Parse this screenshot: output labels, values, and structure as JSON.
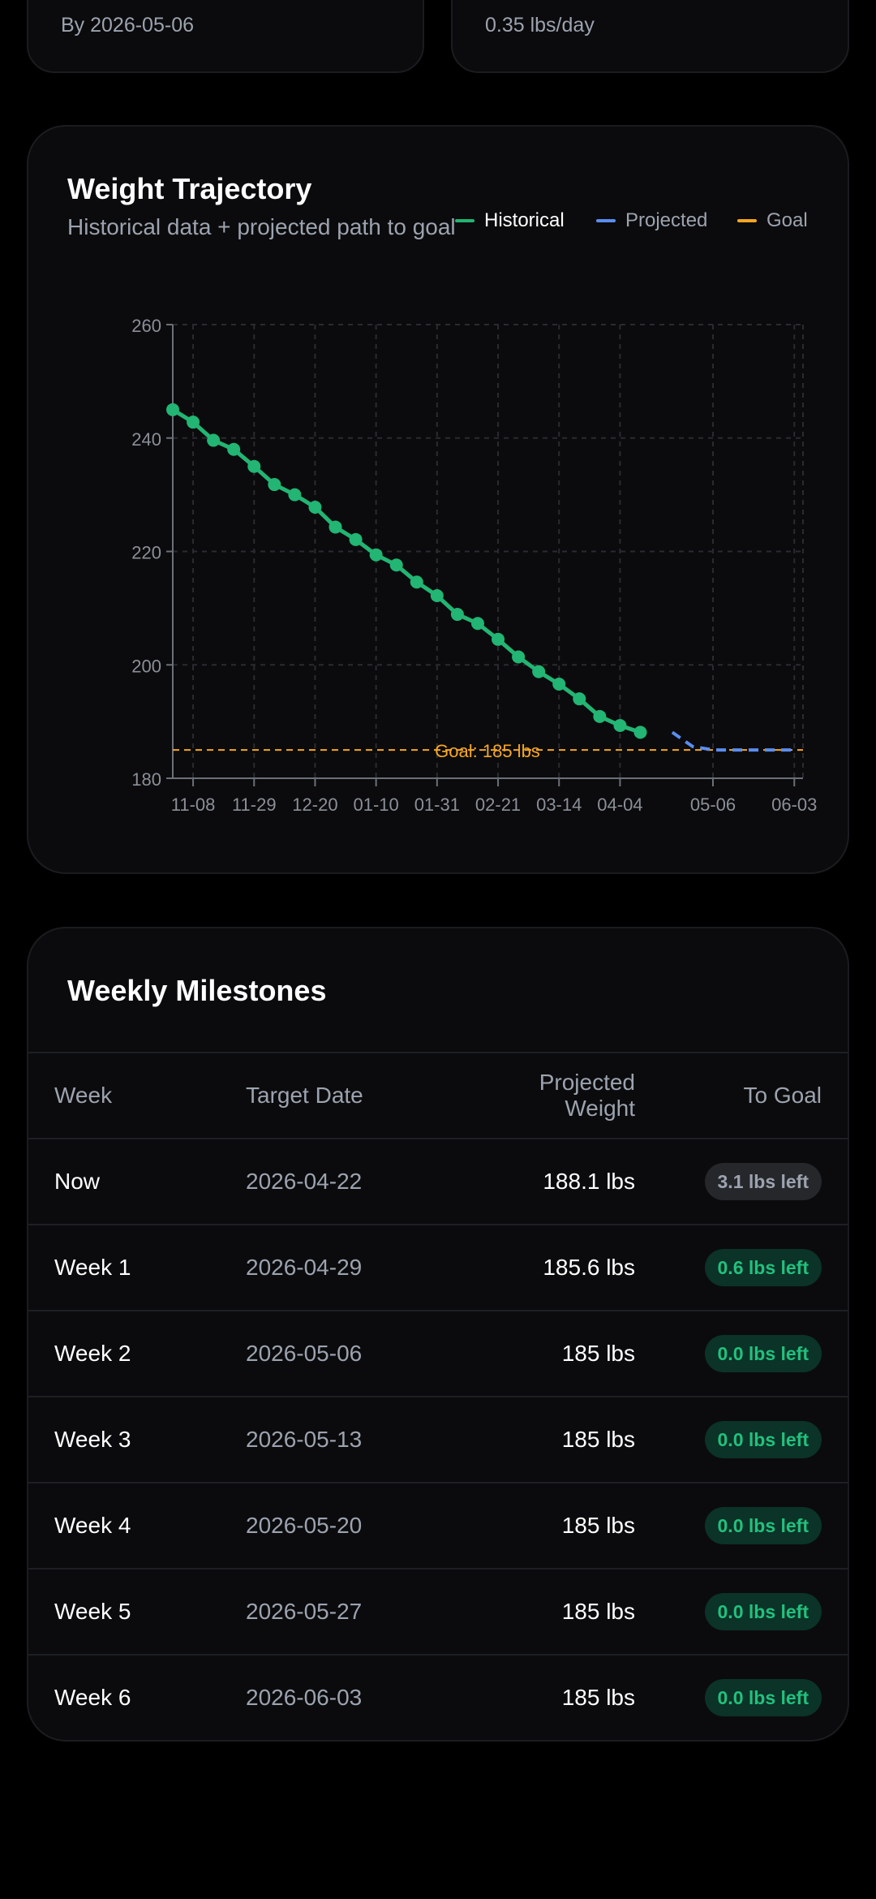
{
  "top_stats": {
    "left_text": "By 2026-05-06",
    "right_text": "0.35 lbs/day"
  },
  "chart_section": {
    "title": "Weight Trajectory",
    "subtitle": "Historical data + projected path to goal",
    "legend": [
      {
        "label": "Historical",
        "color": "#22b573"
      },
      {
        "label": "Projected",
        "color": "#5b8def"
      },
      {
        "label": "Goal",
        "color": "#f5a623"
      }
    ]
  },
  "chart_data": {
    "type": "line",
    "title": "Weight Trajectory",
    "xlabel": "",
    "ylabel": "",
    "x_tick_labels": [
      "11-08",
      "11-29",
      "12-20",
      "01-10",
      "01-31",
      "02-21",
      "03-14",
      "04-04",
      "05-06",
      "06-03"
    ],
    "x_tick_dates": [
      "2025-11-08",
      "2025-11-29",
      "2025-12-20",
      "2026-01-10",
      "2026-01-31",
      "2026-02-21",
      "2026-03-14",
      "2026-04-04",
      "2026-05-06",
      "2026-06-03"
    ],
    "xlim": [
      "2025-11-01",
      "2026-06-06"
    ],
    "ylim": [
      180,
      260
    ],
    "y_ticks": [
      180,
      200,
      220,
      240,
      260
    ],
    "grid": true,
    "series": [
      {
        "name": "Historical",
        "color": "#22b573",
        "points": [
          [
            "2025-11-01",
            245.0
          ],
          [
            "2025-11-08",
            242.8
          ],
          [
            "2025-11-15",
            239.6
          ],
          [
            "2025-11-22",
            238.0
          ],
          [
            "2025-11-29",
            235.0
          ],
          [
            "2025-12-06",
            231.8
          ],
          [
            "2025-12-13",
            230.0
          ],
          [
            "2025-12-20",
            227.8
          ],
          [
            "2025-12-27",
            224.3
          ],
          [
            "2026-01-03",
            222.1
          ],
          [
            "2026-01-10",
            219.4
          ],
          [
            "2026-01-17",
            217.6
          ],
          [
            "2026-01-24",
            214.6
          ],
          [
            "2026-01-31",
            212.2
          ],
          [
            "2026-02-07",
            208.9
          ],
          [
            "2026-02-14",
            207.3
          ],
          [
            "2026-02-21",
            204.5
          ],
          [
            "2026-02-28",
            201.4
          ],
          [
            "2026-03-07",
            198.8
          ],
          [
            "2026-03-14",
            196.6
          ],
          [
            "2026-03-21",
            194.0
          ],
          [
            "2026-03-28",
            190.9
          ],
          [
            "2026-04-04",
            189.3
          ],
          [
            "2026-04-11",
            188.1
          ]
        ]
      },
      {
        "name": "Projected",
        "color": "#5b8def",
        "style": "dashed",
        "points": [
          [
            "2026-04-22",
            188.1
          ],
          [
            "2026-04-29",
            185.6
          ],
          [
            "2026-05-06",
            185.0
          ],
          [
            "2026-05-13",
            185.0
          ],
          [
            "2026-05-20",
            185.0
          ],
          [
            "2026-05-27",
            185.0
          ],
          [
            "2026-06-03",
            185.0
          ]
        ]
      }
    ],
    "goal": {
      "value": 185,
      "label": "Goal: 185 lbs",
      "color": "#f5a623",
      "style": "dashed"
    }
  },
  "milestones": {
    "title": "Weekly Milestones",
    "columns": {
      "week": "Week",
      "date": "Target Date",
      "projected": "Projected Weight",
      "to_goal": "To Goal"
    },
    "rows": [
      {
        "week": "Now",
        "date": "2026-04-22",
        "projected": "188.1 lbs",
        "to_goal": "3.1 lbs left",
        "status": "grey"
      },
      {
        "week": "Week 1",
        "date": "2026-04-29",
        "projected": "185.6 lbs",
        "to_goal": "0.6 lbs left",
        "status": "green"
      },
      {
        "week": "Week 2",
        "date": "2026-05-06",
        "projected": "185 lbs",
        "to_goal": "0.0 lbs left",
        "status": "green"
      },
      {
        "week": "Week 3",
        "date": "2026-05-13",
        "projected": "185 lbs",
        "to_goal": "0.0 lbs left",
        "status": "green"
      },
      {
        "week": "Week 4",
        "date": "2026-05-20",
        "projected": "185 lbs",
        "to_goal": "0.0 lbs left",
        "status": "green"
      },
      {
        "week": "Week 5",
        "date": "2026-05-27",
        "projected": "185 lbs",
        "to_goal": "0.0 lbs left",
        "status": "green"
      },
      {
        "week": "Week 6",
        "date": "2026-06-03",
        "projected": "185 lbs",
        "to_goal": "0.0 lbs left",
        "status": "green"
      }
    ]
  }
}
